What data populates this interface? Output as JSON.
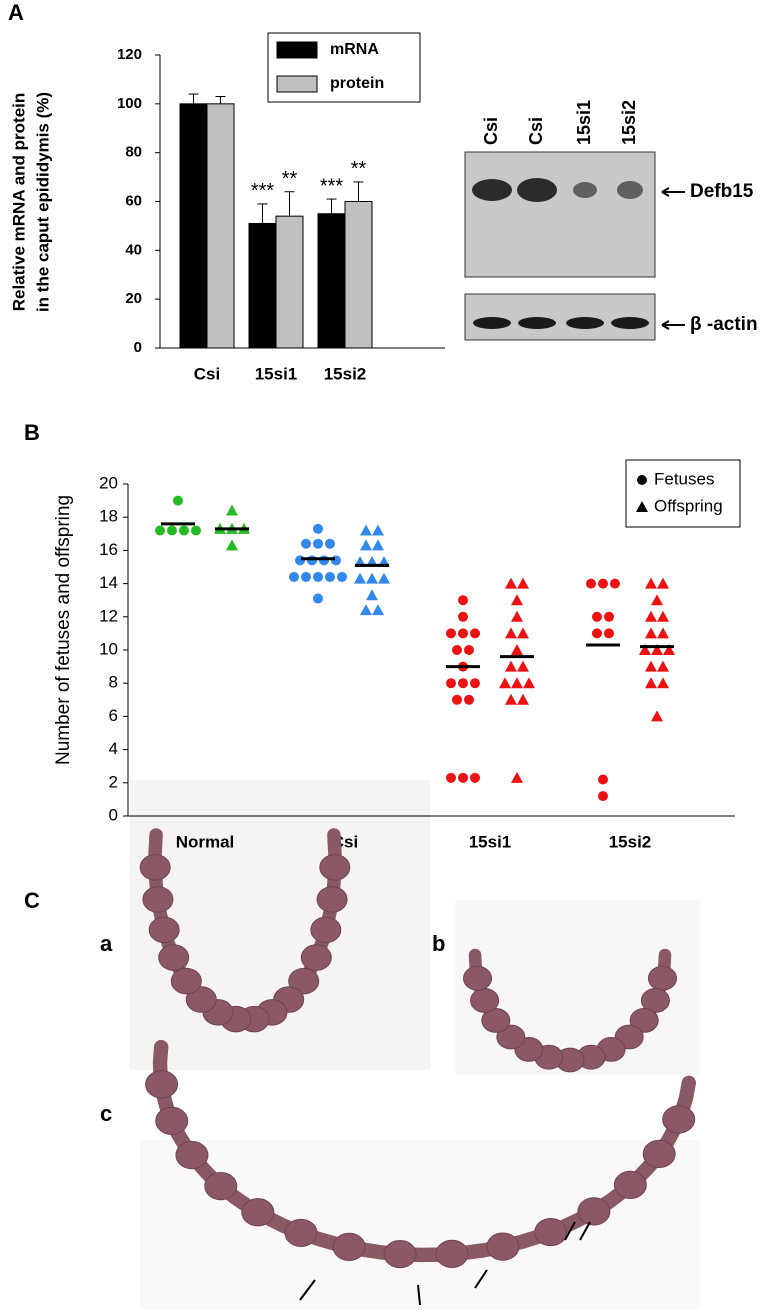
{
  "chart_data": [
    {
      "type": "bar",
      "panel_label": "A",
      "ylabel": [
        "Relative mRNA and protein",
        "in the caput epididymis (%)"
      ],
      "categories": [
        "Csi",
        "15si1",
        "15si2"
      ],
      "series": [
        {
          "name": "mRNA",
          "color": "#000000",
          "values": [
            100,
            51,
            55
          ],
          "errors": [
            4,
            8,
            6
          ],
          "annotations": [
            null,
            "***",
            "***"
          ]
        },
        {
          "name": "protein",
          "color": "#c0c0c0",
          "values": [
            100,
            54,
            60
          ],
          "errors": [
            3,
            10,
            8
          ],
          "annotations": [
            null,
            "**",
            "**"
          ]
        }
      ],
      "ylim": [
        0,
        120
      ],
      "yticks": [
        0,
        20,
        40,
        60,
        80,
        100,
        120
      ],
      "legend": "top"
    },
    {
      "type": "scatter",
      "panel_label": "B",
      "ylabel": "Number of fetuses and offspring",
      "categories": [
        "Normal",
        "Csi",
        "15si1",
        "15si2"
      ],
      "category_colors": [
        "#22bb22",
        "#3388ee",
        "#ee1111",
        "#ee1111"
      ],
      "series": [
        {
          "name": "Fetuses",
          "marker": "circle",
          "values": [
            [
              19,
              17.2,
              17.2,
              17.2,
              17.2
            ],
            [
              17.3,
              16.4,
              16.4,
              16.4,
              15.4,
              15.4,
              15.4,
              15.4,
              14.4,
              14.4,
              14.4,
              14.4,
              14.4,
              13.1
            ],
            [
              13,
              12,
              11,
              11,
              11,
              10,
              10,
              9,
              8,
              8,
              8,
              7,
              7,
              2.3,
              2.3,
              2.3
            ],
            [
              14,
              14,
              14,
              12,
              12,
              11,
              11,
              2.2,
              1.2
            ]
          ],
          "means": [
            17.6,
            15.5,
            9,
            10.3
          ]
        },
        {
          "name": "Offspring",
          "marker": "triangle",
          "values": [
            [
              18.4,
              17.3,
              17.3,
              17.3,
              16.3
            ],
            [
              17.2,
              17.2,
              16.3,
              16.3,
              15.3,
              15.3,
              15.3,
              14.3,
              14.3,
              14.3,
              13.3,
              12.4,
              12.4
            ],
            [
              14,
              14,
              13,
              12,
              11,
              11,
              10,
              9,
              9,
              8,
              8,
              8,
              7,
              7,
              2.3
            ],
            [
              14,
              14,
              13,
              12,
              12,
              11,
              11,
              10,
              10,
              10,
              9,
              9,
              8,
              8,
              6
            ]
          ],
          "means": [
            17.3,
            15.1,
            9.6,
            10.2
          ]
        }
      ],
      "ylim": [
        0,
        20
      ],
      "yticks": [
        0,
        2,
        4,
        6,
        8,
        10,
        12,
        14,
        16,
        18,
        20
      ],
      "legend": "top-right"
    }
  ],
  "blot": {
    "lanes": [
      "Csi",
      "Csi",
      "15si1",
      "15si2"
    ],
    "bands": [
      "Defb15",
      "β -actin"
    ]
  },
  "panel_c": {
    "label": "C",
    "images": [
      "a",
      "b",
      "c"
    ]
  }
}
